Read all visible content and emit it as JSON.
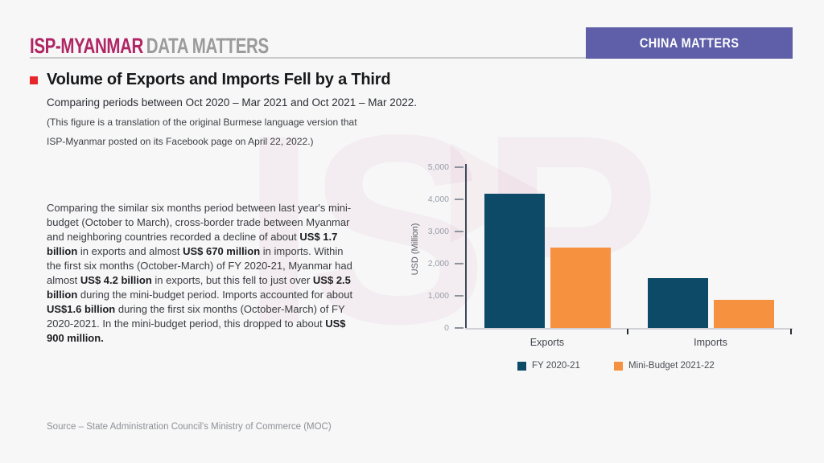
{
  "header": {
    "brand_primary": "ISP-MYANMAR",
    "brand_secondary": "DATA MATTERS",
    "badge": "CHINA MATTERS"
  },
  "headline": {
    "title": "Volume of Exports and Imports Fell by a Third",
    "subtitle": "Comparing periods between Oct 2020 – Mar 2021 and Oct 2021 – Mar 2022.",
    "note_line1": "(This figure is a translation of the original Burmese language version that",
    "note_line2": "ISP-Myanmar posted on its Facebook page on April 22, 2022.)"
  },
  "body_paragraph": {
    "segments": [
      {
        "text": "Comparing the similar six months period between last year's mini-budget (October to March), cross-border trade between Myanmar and neighboring countries recorded a decline of about ",
        "bold": false
      },
      {
        "text": "US$ 1.7 billion",
        "bold": true
      },
      {
        "text": " in exports and almost ",
        "bold": false
      },
      {
        "text": "US$ 670 million",
        "bold": true
      },
      {
        "text": " in imports. Within the first six months (October-March) of FY 2020-21, Myanmar had almost ",
        "bold": false
      },
      {
        "text": "US$ 4.2 billion",
        "bold": true
      },
      {
        "text": " in exports, but this fell to just over ",
        "bold": false
      },
      {
        "text": "US$ 2.5 billion",
        "bold": true
      },
      {
        "text": " during the mini-budget period. Imports accounted for about ",
        "bold": false
      },
      {
        "text": "US$1.6 billion",
        "bold": true
      },
      {
        "text": " during the first six months (October-March) of FY 2020-2021. In the mini-budget period, this dropped to about ",
        "bold": false
      },
      {
        "text": "US$ 900 million.",
        "bold": true
      }
    ]
  },
  "source": "Source – State Administration Council's Ministry of Commerce (MOC)",
  "watermark": {
    "text": "ISP"
  },
  "colors": {
    "brand_magenta": "#b02563",
    "brand_gray": "#9b9b9b",
    "badge_purple": "#5e5ea9",
    "bullet_red": "#e8252a",
    "bar_navy": "#0d4a68",
    "bar_orange": "#f6923f",
    "background": "#f7f7f8"
  },
  "chart_data": {
    "type": "bar",
    "title": "",
    "categories": [
      "Exports",
      "Imports"
    ],
    "series": [
      {
        "name": "FY 2020-21",
        "color": "#0d4a68",
        "values": [
          4170,
          1550
        ]
      },
      {
        "name": "Mini-Budget 2021-22",
        "color": "#f6923f",
        "values": [
          2500,
          880
        ]
      }
    ],
    "xlabel": "",
    "ylabel": "USD (Million)",
    "ylim": [
      0,
      5000
    ],
    "ytick_labels": [
      "0",
      "1,000",
      "2,000",
      "3,000",
      "4,000",
      "5,000"
    ],
    "grid": false,
    "legend_position": "bottom"
  }
}
